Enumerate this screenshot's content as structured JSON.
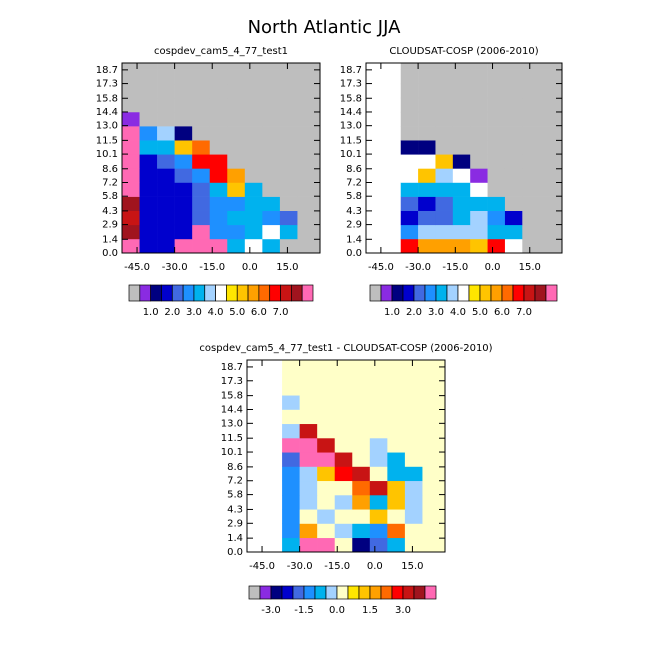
{
  "title": "North Atlantic JJA",
  "chart_data": [
    {
      "type": "heatmap",
      "title": "cospdev_cam5_4_77_test1",
      "xlim": [
        -51,
        28
      ],
      "ylim": [
        0,
        19.4
      ],
      "xticks": [
        {
          "value": -45,
          "label": "-45.0"
        },
        {
          "value": -30,
          "label": "-30.0"
        },
        {
          "value": -15,
          "label": "-15.0"
        },
        {
          "value": 0,
          "label": "0.0"
        },
        {
          "value": 15,
          "label": "15.0"
        }
      ],
      "yticks": [
        {
          "value": 0,
          "label": "0.0"
        },
        1.4,
        2.9,
        4.3,
        5.8,
        7.2,
        8.6,
        10.1,
        11.5,
        {
          "value": 13,
          "label": "13.0"
        },
        14.4,
        15.8,
        17.3,
        18.7
      ],
      "x_edges": [
        -51,
        -44,
        -37,
        -30,
        -23,
        -16,
        -9,
        -2,
        5,
        12,
        19,
        28
      ],
      "y_edges": [
        0,
        1.44,
        2.88,
        4.32,
        5.76,
        7.2,
        8.64,
        10.08,
        11.52,
        12.96,
        14.4,
        15.84,
        17.28,
        18.72,
        19.4
      ],
      "z": [
        [
          8,
          1.5,
          1.5,
          8,
          8,
          8,
          3,
          4.2,
          3,
          0,
          0
        ],
        [
          7.5,
          1.5,
          1.5,
          1.5,
          8,
          2.5,
          2.5,
          3,
          4.2,
          3,
          0
        ],
        [
          7,
          1.5,
          1.5,
          1.5,
          2,
          2.5,
          3,
          3,
          2.5,
          2,
          0
        ],
        [
          7.5,
          1.5,
          1.5,
          1.5,
          2,
          2.5,
          2.5,
          3,
          3,
          0,
          0
        ],
        [
          8,
          1.5,
          1.5,
          1.5,
          2,
          3,
          5,
          3,
          0,
          0,
          0
        ],
        [
          8,
          1.5,
          1.5,
          2,
          2.5,
          6.5,
          5.5,
          0,
          0,
          0,
          0
        ],
        [
          8,
          1.5,
          2,
          2.5,
          6.5,
          6.5,
          0,
          0,
          0,
          0,
          0
        ],
        [
          8,
          3,
          3,
          5,
          6,
          0,
          0,
          0,
          0,
          0,
          0
        ],
        [
          8,
          2.5,
          3.5,
          1,
          0,
          0,
          0,
          0,
          0,
          0,
          0
        ],
        [
          0.8,
          0,
          0,
          0,
          0,
          0,
          0,
          0,
          0,
          0,
          0
        ],
        [
          0,
          0,
          0,
          0,
          0,
          0,
          0,
          0,
          0,
          0,
          0
        ],
        [
          0,
          0,
          0,
          0,
          0,
          0,
          0,
          0,
          0,
          0,
          0
        ],
        [
          0,
          0,
          0,
          0,
          0,
          0,
          0,
          0,
          0,
          0,
          0
        ],
        [
          0,
          0,
          0,
          0,
          0,
          0,
          0,
          0,
          0,
          0,
          0
        ]
      ],
      "colorbar": {
        "levels": [
          0.5,
          1,
          1.5,
          2,
          2.5,
          3,
          3.5,
          4,
          4.5,
          5,
          5.5,
          6,
          6.5,
          7,
          7.5,
          8
        ],
        "colors": [
          "#bebebe",
          "#8a2be2",
          "#000080",
          "#0000cd",
          "#4169e1",
          "#1e90ff",
          "#00b2ee",
          "#a3d2ff",
          "#ffffff",
          "#ffe600",
          "#ffc400",
          "#ffa000",
          "#ff6a00",
          "#ff0000",
          "#c81414",
          "#a0141e",
          "#ff69b4"
        ],
        "ticks": [
          {
            "value": 1,
            "label": "1.0"
          },
          {
            "value": 2,
            "label": "2.0"
          },
          {
            "value": 3,
            "label": "3.0"
          },
          {
            "value": 4,
            "label": "4.0"
          },
          {
            "value": 5,
            "label": "5.0"
          },
          {
            "value": 6,
            "label": "6.0"
          },
          {
            "value": 7,
            "label": "7.0"
          }
        ]
      }
    },
    {
      "type": "heatmap",
      "title": "CLOUDSAT-COSP (2006-2010)",
      "xlim": [
        -51,
        28
      ],
      "ylim": [
        0,
        19.4
      ],
      "xticks": [
        {
          "value": -45,
          "label": "-45.0"
        },
        {
          "value": -30,
          "label": "-30.0"
        },
        {
          "value": -15,
          "label": "-15.0"
        },
        {
          "value": 0,
          "label": "0.0"
        },
        {
          "value": 15,
          "label": "15.0"
        }
      ],
      "yticks": [
        {
          "value": 0,
          "label": "0.0"
        },
        1.4,
        2.9,
        4.3,
        5.8,
        7.2,
        8.6,
        10.1,
        11.5,
        {
          "value": 13,
          "label": "13.0"
        },
        14.4,
        15.8,
        17.3,
        18.7
      ],
      "x_edges": [
        -51,
        -44,
        -37,
        -30,
        -23,
        -16,
        -9,
        -2,
        5,
        12,
        19,
        28
      ],
      "y_edges": [
        0,
        1.44,
        2.88,
        4.32,
        5.76,
        7.2,
        8.64,
        10.08,
        11.52,
        12.96,
        14.4,
        15.84,
        17.28,
        18.72,
        19.4
      ],
      "z": [
        [
          null,
          null,
          6.5,
          5.5,
          5.5,
          5.5,
          5,
          6.5,
          4,
          0,
          0
        ],
        [
          null,
          null,
          2.5,
          3.5,
          3.5,
          3.5,
          3.5,
          3,
          3,
          0,
          0
        ],
        [
          null,
          null,
          1.5,
          2,
          2,
          3,
          3.5,
          2.5,
          1.5,
          0,
          0
        ],
        [
          null,
          null,
          2,
          1.5,
          2,
          3,
          3,
          3,
          0,
          0,
          0
        ],
        [
          null,
          null,
          3,
          3,
          3,
          3,
          4.2,
          0,
          0,
          0,
          0
        ],
        [
          null,
          null,
          4.2,
          5,
          3.5,
          4.2,
          0.8,
          0,
          0,
          0,
          0
        ],
        [
          null,
          null,
          4.2,
          4.2,
          5,
          1,
          0,
          0,
          0,
          0,
          0
        ],
        [
          null,
          null,
          1,
          1,
          0,
          0,
          0,
          0,
          0,
          0,
          0
        ],
        [
          null,
          null,
          0,
          0,
          0,
          0,
          0,
          0,
          0,
          0,
          0
        ],
        [
          null,
          null,
          0,
          0,
          0,
          0,
          0,
          0,
          0,
          0,
          0
        ],
        [
          null,
          null,
          0,
          0,
          0,
          0,
          0,
          0,
          0,
          0,
          0
        ],
        [
          null,
          null,
          0,
          0,
          0,
          0,
          0,
          0,
          0,
          0,
          0
        ],
        [
          null,
          null,
          0,
          0,
          0,
          0,
          0,
          0,
          0,
          0,
          0
        ],
        [
          null,
          null,
          0,
          0,
          0,
          0,
          0,
          0,
          0,
          0,
          0
        ]
      ],
      "colorbar": {
        "levels": [
          0.5,
          1,
          1.5,
          2,
          2.5,
          3,
          3.5,
          4,
          4.5,
          5,
          5.5,
          6,
          6.5,
          7,
          7.5,
          8
        ],
        "colors": [
          "#bebebe",
          "#8a2be2",
          "#000080",
          "#0000cd",
          "#4169e1",
          "#1e90ff",
          "#00b2ee",
          "#a3d2ff",
          "#ffffff",
          "#ffe600",
          "#ffc400",
          "#ffa000",
          "#ff6a00",
          "#ff0000",
          "#c81414",
          "#a0141e",
          "#ff69b4"
        ],
        "ticks": [
          {
            "value": 1,
            "label": "1.0"
          },
          {
            "value": 2,
            "label": "2.0"
          },
          {
            "value": 3,
            "label": "3.0"
          },
          {
            "value": 4,
            "label": "4.0"
          },
          {
            "value": 5,
            "label": "5.0"
          },
          {
            "value": 6,
            "label": "6.0"
          },
          {
            "value": 7,
            "label": "7.0"
          }
        ]
      }
    },
    {
      "type": "heatmap",
      "title": "cospdev_cam5_4_77_test1 - CLOUDSAT-COSP (2006-2010)",
      "xlim": [
        -51,
        28
      ],
      "ylim": [
        0,
        19.4
      ],
      "xticks": [
        {
          "value": -45,
          "label": "-45.0"
        },
        {
          "value": -30,
          "label": "-30.0"
        },
        {
          "value": -15,
          "label": "-15.0"
        },
        {
          "value": 0,
          "label": "0.0"
        },
        {
          "value": 15,
          "label": "15.0"
        }
      ],
      "yticks": [
        {
          "value": 0,
          "label": "0.0"
        },
        1.4,
        2.9,
        4.3,
        5.8,
        7.2,
        8.6,
        10.1,
        11.5,
        {
          "value": 13,
          "label": "13.0"
        },
        14.4,
        15.8,
        17.3,
        18.7
      ],
      "x_edges": [
        -51,
        -44,
        -37,
        -30,
        -23,
        -16,
        -9,
        -2,
        5,
        12,
        19,
        28
      ],
      "y_edges": [
        0,
        1.44,
        2.88,
        4.32,
        5.76,
        7.2,
        8.64,
        10.08,
        11.52,
        12.96,
        14.4,
        15.84,
        17.28,
        18.72,
        19.4
      ],
      "z": [
        [
          null,
          null,
          -1,
          4,
          4,
          0.25,
          -3,
          -2,
          -1,
          0.25,
          0.25
        ],
        [
          null,
          null,
          -1.5,
          1.5,
          0.25,
          -0.3,
          -1,
          -1.5,
          2,
          0.25,
          0.25
        ],
        [
          null,
          null,
          -1.5,
          0.25,
          -0.3,
          0.25,
          0.25,
          1,
          0.25,
          -0.5,
          0.25
        ],
        [
          null,
          null,
          -1.5,
          -0.5,
          0.25,
          -0.3,
          1.5,
          -1,
          1,
          -0.5,
          0.25
        ],
        [
          null,
          null,
          -1.5,
          -0.5,
          0.25,
          0.25,
          2,
          3,
          1,
          -0.5,
          0.25
        ],
        [
          null,
          null,
          -1.5,
          -0.5,
          1,
          2.5,
          3,
          0.25,
          -1,
          -1,
          0.25
        ],
        [
          null,
          null,
          -2,
          4,
          4,
          3,
          0.25,
          -0.5,
          -1,
          0.25,
          0.25
        ],
        [
          null,
          null,
          4,
          4,
          3,
          0.25,
          0.25,
          -0.5,
          0.25,
          0.25,
          0.25
        ],
        [
          null,
          null,
          -0.5,
          3,
          0.25,
          0.25,
          0.25,
          0.25,
          0.25,
          0.25,
          0.25
        ],
        [
          null,
          null,
          0.25,
          0.25,
          0.25,
          0.25,
          0.25,
          0.25,
          0.25,
          0.25,
          0.25
        ],
        [
          null,
          null,
          -0.5,
          0.25,
          0.25,
          0.25,
          0.25,
          0.25,
          0.25,
          0.25,
          0.25
        ],
        [
          null,
          null,
          0.25,
          0.25,
          0.25,
          0.25,
          0.25,
          0.25,
          0.25,
          0.25,
          0.25
        ],
        [
          null,
          null,
          0.25,
          0.25,
          0.25,
          0.25,
          0.25,
          0.25,
          0.25,
          0.25,
          0.25
        ],
        [
          null,
          null,
          0.25,
          0.25,
          0.25,
          0.25,
          0.25,
          0.25,
          0.25,
          0.25,
          0.25
        ]
      ],
      "colorbar": {
        "levels": [
          -3.5,
          -3,
          -2.5,
          -2,
          -1.5,
          -1,
          -0.5,
          0,
          0.5,
          1,
          1.5,
          2,
          2.5,
          3,
          3.5,
          4
        ],
        "colors": [
          "#bebebe",
          "#8a2be2",
          "#000080",
          "#0000cd",
          "#4169e1",
          "#1e90ff",
          "#00b2ee",
          "#a3d2ff",
          "#ffffc8",
          "#ffe600",
          "#ffc400",
          "#ffa000",
          "#ff6a00",
          "#ff0000",
          "#c81414",
          "#a0141e",
          "#ff69b4"
        ],
        "ticks": [
          {
            "value": -3,
            "label": "-3.0"
          },
          -1.5,
          {
            "value": 0,
            "label": "0.0"
          },
          1.5,
          {
            "value": 3,
            "label": "3.0"
          }
        ]
      }
    }
  ]
}
